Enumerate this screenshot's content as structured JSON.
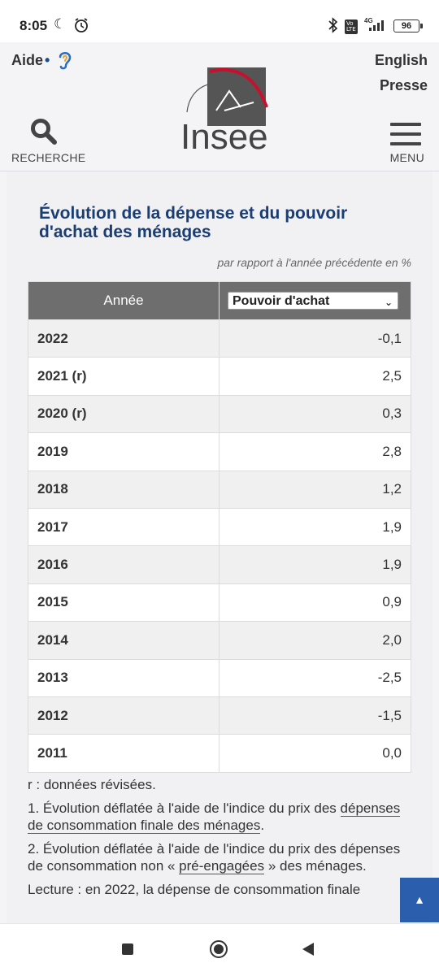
{
  "status_bar": {
    "time": "8:05",
    "battery": "96",
    "network": "4G"
  },
  "header": {
    "help_label": "Aide",
    "help_dot": "•",
    "english_label": "English",
    "press_label": "Presse",
    "logo_text": "Insee",
    "search_label": "RECHERCHE",
    "menu_label": "MENU"
  },
  "figure": {
    "title": "Évolution de la dépense et du pouvoir d'achat des ménages",
    "unit_note": "par rapport à l'année précédente en %",
    "columns": {
      "year": "Année",
      "selected_series": "Pouvoir d'achat"
    },
    "rows": [
      {
        "year": "2022",
        "value": "-0,1"
      },
      {
        "year": "2021 (r)",
        "value": "2,5"
      },
      {
        "year": "2020 (r)",
        "value": "0,3"
      },
      {
        "year": "2019",
        "value": "2,8"
      },
      {
        "year": "2018",
        "value": "1,2"
      },
      {
        "year": "2017",
        "value": "1,9"
      },
      {
        "year": "2016",
        "value": "1,9"
      },
      {
        "year": "2015",
        "value": "0,9"
      },
      {
        "year": "2014",
        "value": "2,0"
      },
      {
        "year": "2013",
        "value": "-2,5"
      },
      {
        "year": "2012",
        "value": "-1,5"
      },
      {
        "year": "2011",
        "value": "0,0"
      }
    ]
  },
  "notes": {
    "revised": "r : données révisées.",
    "note1_prefix": "1. Évolution déflatée à l'aide de l'indice du prix des ",
    "note1_link": "dépenses de consommation finale des ménages",
    "note1_suffix": ".",
    "note2_prefix": "2. Évolution déflatée à l'aide de l'indice du prix des dépenses de consommation non « ",
    "note2_link": "pré-engagées",
    "note2_suffix": " » des ménages.",
    "reading": "Lecture : en 2022, la dépense de consommation finale"
  },
  "colors": {
    "title_blue": "#1a3d73",
    "header_gray": "#6e6e6e",
    "scroll_button_blue": "#2b5fad"
  }
}
